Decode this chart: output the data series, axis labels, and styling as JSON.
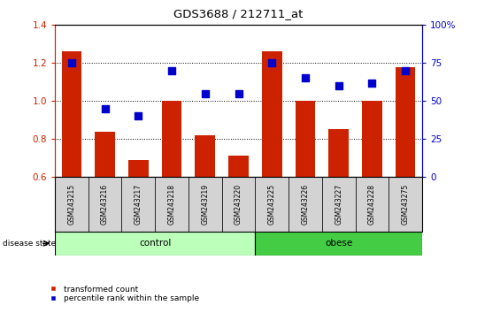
{
  "title": "GDS3688 / 212711_at",
  "categories": [
    "GSM243215",
    "GSM243216",
    "GSM243217",
    "GSM243218",
    "GSM243219",
    "GSM243220",
    "GSM243225",
    "GSM243226",
    "GSM243227",
    "GSM243228",
    "GSM243275"
  ],
  "red_values": [
    1.26,
    0.84,
    0.69,
    1.0,
    0.82,
    0.71,
    1.26,
    1.0,
    0.85,
    1.0,
    1.18
  ],
  "blue_percentile": [
    75,
    45,
    40,
    70,
    55,
    55,
    75,
    65,
    60,
    62,
    70
  ],
  "ylim_left": [
    0.6,
    1.4
  ],
  "ylim_right": [
    0,
    100
  ],
  "yticks_left": [
    0.6,
    0.8,
    1.0,
    1.2,
    1.4
  ],
  "yticks_right": [
    0,
    25,
    50,
    75,
    100
  ],
  "ytick_labels_right": [
    "0",
    "25",
    "50",
    "75",
    "100%"
  ],
  "grid_values": [
    0.8,
    1.0,
    1.2
  ],
  "bar_color": "#cc2200",
  "dot_color": "#0000cc",
  "control_color": "#bbffbb",
  "obese_color": "#44cc44",
  "control_indices": [
    0,
    1,
    2,
    3,
    4,
    5
  ],
  "obese_indices": [
    6,
    7,
    8,
    9,
    10
  ],
  "control_label": "control",
  "obese_label": "obese",
  "disease_state_label": "disease state",
  "legend_red": "transformed count",
  "legend_blue": "percentile rank within the sample",
  "left_axis_color": "#cc2200",
  "right_axis_color": "#0000cc",
  "bar_bottom": 0.6,
  "bar_width": 0.6,
  "dot_size": 28,
  "label_bg": "#d3d3d3"
}
